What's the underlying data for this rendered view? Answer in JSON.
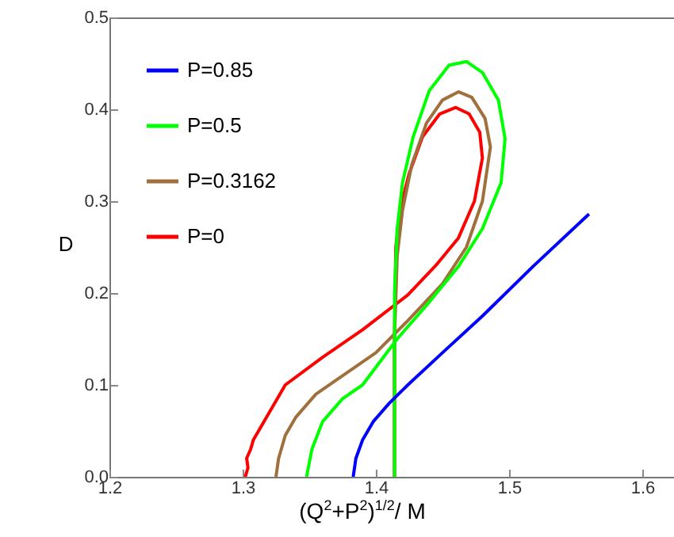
{
  "chart_data": {
    "type": "line",
    "xlabel": "(Q$^{2}$+P$^{2}$)$^{1/2}$/ M",
    "ylabel": "D",
    "xlim": [
      1.2,
      1.65
    ],
    "xticks": [
      1.2,
      1.3,
      1.4,
      1.5,
      1.6
    ],
    "ylim": [
      0,
      0.5
    ],
    "yticks": [
      {
        "value": 0,
        "label": "0.0"
      },
      {
        "value": 0.1,
        "label": "0.1"
      },
      {
        "value": 0.2,
        "label": "0.2"
      },
      {
        "value": 0.3,
        "label": "0.3"
      },
      {
        "value": 0.4,
        "label": "0.4"
      },
      {
        "value": 0.5,
        "label": "0.5"
      }
    ],
    "grid": false,
    "legend": "top left",
    "line_style": "solid",
    "series": [
      {
        "name": "P=0.85",
        "color": "#0000ff",
        "x": [
          1.383,
          1.385,
          1.39,
          1.398,
          1.41,
          1.424,
          1.45,
          1.48,
          1.518,
          1.56
        ],
        "values": [
          0,
          0.02,
          0.04,
          0.06,
          0.08,
          0.1,
          0.135,
          0.175,
          0.229,
          0.286
        ]
      },
      {
        "name": "P=0.5",
        "color": "#00ff00",
        "x": [
          1.348,
          1.352,
          1.36,
          1.375,
          1.39,
          1.416,
          1.44,
          1.462,
          1.48,
          1.494,
          1.497,
          1.492,
          1.48,
          1.468,
          1.455,
          1.44,
          1.428,
          1.42,
          1.416,
          1.414,
          1.414,
          1.414
        ],
        "values": [
          0,
          0.03,
          0.06,
          0.085,
          0.1,
          0.15,
          0.19,
          0.229,
          0.27,
          0.32,
          0.368,
          0.41,
          0.44,
          0.452,
          0.448,
          0.42,
          0.37,
          0.32,
          0.27,
          0.2,
          0.1,
          0
        ]
      },
      {
        "name": "P=0.3162",
        "color": "#a0703c",
        "x": [
          1.325,
          1.327,
          1.332,
          1.34,
          1.355,
          1.375,
          1.4,
          1.424,
          1.45,
          1.468,
          1.48,
          1.486,
          1.482,
          1.472,
          1.462,
          1.45,
          1.438,
          1.427,
          1.42,
          1.416,
          1.414,
          1.414
        ],
        "values": [
          0,
          0.02,
          0.045,
          0.065,
          0.09,
          0.11,
          0.135,
          0.17,
          0.21,
          0.25,
          0.3,
          0.359,
          0.39,
          0.413,
          0.419,
          0.41,
          0.385,
          0.34,
          0.29,
          0.24,
          0.15,
          0
        ]
      },
      {
        "name": "P=0",
        "color": "#ff0000",
        "x": [
          1.302,
          1.304,
          1.303,
          1.306,
          1.308,
          1.312,
          1.32,
          1.332,
          1.36,
          1.39,
          1.424,
          1.445,
          1.462,
          1.474,
          1.48,
          1.478,
          1.47,
          1.46,
          1.448,
          1.435,
          1.425,
          1.418,
          1.415,
          1.414,
          1.414
        ],
        "values": [
          0,
          0.01,
          0.02,
          0.03,
          0.04,
          0.05,
          0.07,
          0.1,
          0.13,
          0.16,
          0.198,
          0.23,
          0.26,
          0.3,
          0.347,
          0.375,
          0.395,
          0.402,
          0.395,
          0.37,
          0.33,
          0.29,
          0.25,
          0.15,
          0
        ]
      }
    ]
  }
}
